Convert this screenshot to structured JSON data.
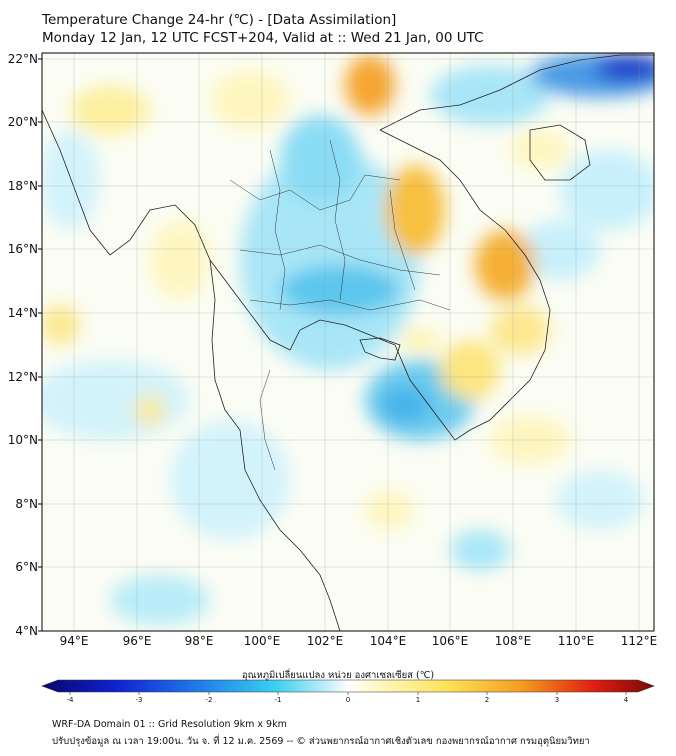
{
  "title": {
    "line1": "Temperature Change 24-hr (℃) - [Data Assimilation]",
    "line2": "Monday 12 Jan, 12 UTC FCST+204, Valid at :: Wed 21 Jan, 00 UTC"
  },
  "map": {
    "lat_labels": [
      "22°N",
      "20°N",
      "18°N",
      "16°N",
      "14°N",
      "12°N",
      "10°N",
      "8°N",
      "6°N",
      "4°N"
    ],
    "lon_labels": [
      "94°E",
      "96°E",
      "98°E",
      "100°E",
      "102°E",
      "104°E",
      "106°E",
      "108°E",
      "110°E",
      "112°E"
    ],
    "lat_range": [
      4,
      22.3
    ],
    "lon_range": [
      93,
      112.5
    ]
  },
  "colorbar": {
    "label": "อุณหภูมิเปลี่ยนแปลง หน่วย องศาเซลเซียส (℃)",
    "ticks": [
      "-4",
      "-3",
      "-2",
      "-1",
      "0",
      "1",
      "2",
      "3",
      "4"
    ],
    "range": [
      -4,
      4
    ]
  },
  "footer": {
    "line1": "WRF-DA Domain 01 :: Grid Resolution 9km x 9km",
    "line2": "ปรับปรุงข้อมูล ณ เวลา 19:00น. วัน จ. ที่ 12 ม.ค. 2569 -- © ส่วนพยากรณ์อากาศเชิงตัวเลข กองพยากรณ์อากาศ กรมอุตุนิยมวิทยา"
  }
}
